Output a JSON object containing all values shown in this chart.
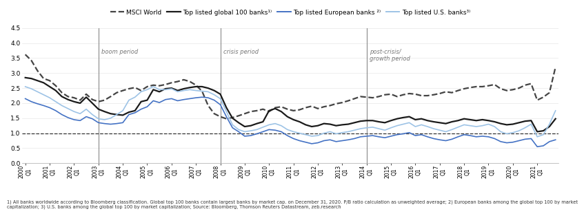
{
  "ylim": [
    0.0,
    4.5
  ],
  "yticks": [
    0.0,
    0.5,
    1.0,
    1.5,
    2.0,
    2.5,
    3.0,
    3.5,
    4.0,
    4.5
  ],
  "n_points": 88,
  "period_indices": [
    12,
    32,
    56
  ],
  "period_labels": [
    "boom period",
    "crisis period",
    "post-crisis/\ngrowth period"
  ],
  "footnote": "1) All banks worldwide according to Bloomberg classification. Global top 100 banks contain largest banks by market cap. on December 31, 2020. P/B ratio calculation as unweighted average; 2) European banks among the global top 100 by market\ncapitalization; 3) U.S. banks among the global top 100 by market capitalization; Source: Bloomberg, Thomson Reuters Datastream, zeb.research",
  "series": {
    "msci": {
      "label": "MSCI World",
      "color": "#444444",
      "linestyle": "--",
      "linewidth": 1.6,
      "values": [
        3.62,
        3.42,
        3.08,
        2.82,
        2.75,
        2.58,
        2.35,
        2.22,
        2.18,
        2.1,
        2.3,
        2.12,
        2.05,
        2.1,
        2.22,
        2.35,
        2.42,
        2.48,
        2.52,
        2.42,
        2.55,
        2.6,
        2.58,
        2.62,
        2.68,
        2.72,
        2.78,
        2.72,
        2.6,
        2.4,
        1.92,
        1.65,
        1.55,
        1.48,
        1.52,
        1.58,
        1.65,
        1.72,
        1.75,
        1.8,
        1.72,
        1.85,
        1.88,
        1.8,
        1.75,
        1.78,
        1.85,
        1.9,
        1.82,
        1.88,
        1.92,
        1.98,
        2.02,
        2.08,
        2.15,
        2.22,
        2.2,
        2.18,
        2.22,
        2.28,
        2.3,
        2.22,
        2.28,
        2.32,
        2.3,
        2.25,
        2.25,
        2.28,
        2.32,
        2.38,
        2.35,
        2.42,
        2.48,
        2.52,
        2.55,
        2.55,
        2.58,
        2.62,
        2.48,
        2.42,
        2.45,
        2.5,
        2.6,
        2.65,
        2.1,
        2.2,
        2.35,
        3.2
      ]
    },
    "global100": {
      "label": "Top listed global 100 banks",
      "label_super": "1)",
      "color": "#1a1a1a",
      "linestyle": "-",
      "linewidth": 1.6,
      "values": [
        2.85,
        2.82,
        2.75,
        2.68,
        2.55,
        2.42,
        2.22,
        2.12,
        2.05,
        2.0,
        2.2,
        2.0,
        1.8,
        1.72,
        1.65,
        1.62,
        1.6,
        1.7,
        1.75,
        2.05,
        2.1,
        2.45,
        2.38,
        2.48,
        2.5,
        2.42,
        2.48,
        2.52,
        2.55,
        2.55,
        2.5,
        2.42,
        2.3,
        1.85,
        1.5,
        1.35,
        1.22,
        1.25,
        1.32,
        1.38,
        1.75,
        1.82,
        1.72,
        1.55,
        1.45,
        1.38,
        1.28,
        1.22,
        1.25,
        1.32,
        1.3,
        1.25,
        1.28,
        1.3,
        1.35,
        1.4,
        1.42,
        1.42,
        1.38,
        1.35,
        1.42,
        1.48,
        1.52,
        1.55,
        1.45,
        1.48,
        1.42,
        1.38,
        1.35,
        1.32,
        1.38,
        1.42,
        1.48,
        1.45,
        1.42,
        1.45,
        1.42,
        1.38,
        1.32,
        1.28,
        1.3,
        1.35,
        1.4,
        1.42,
        1.05,
        1.08,
        1.22,
        1.48
      ]
    },
    "european": {
      "label": "Top listed European banks",
      "label_super": "2)",
      "color": "#4472c4",
      "linestyle": "-",
      "linewidth": 1.2,
      "values": [
        2.15,
        2.05,
        1.98,
        1.92,
        1.85,
        1.75,
        1.62,
        1.52,
        1.45,
        1.42,
        1.55,
        1.48,
        1.35,
        1.32,
        1.3,
        1.32,
        1.35,
        1.62,
        1.68,
        1.8,
        1.88,
        2.08,
        2.02,
        2.12,
        2.15,
        2.08,
        2.12,
        2.15,
        2.18,
        2.2,
        2.18,
        2.1,
        1.95,
        1.55,
        1.18,
        1.05,
        0.9,
        0.92,
        0.98,
        1.05,
        1.12,
        1.1,
        1.05,
        0.92,
        0.82,
        0.75,
        0.7,
        0.65,
        0.68,
        0.75,
        0.78,
        0.72,
        0.75,
        0.78,
        0.82,
        0.88,
        0.9,
        0.92,
        0.88,
        0.85,
        0.9,
        0.95,
        0.98,
        1.02,
        0.92,
        0.95,
        0.88,
        0.82,
        0.78,
        0.75,
        0.8,
        0.88,
        0.95,
        0.92,
        0.88,
        0.9,
        0.88,
        0.82,
        0.72,
        0.68,
        0.7,
        0.75,
        0.8,
        0.82,
        0.55,
        0.58,
        0.72,
        0.78
      ]
    },
    "us": {
      "label": "Top listed U.S. banks",
      "label_super": "3)",
      "color": "#9dc3e6",
      "linestyle": "-",
      "linewidth": 1.2,
      "values": [
        2.55,
        2.48,
        2.38,
        2.28,
        2.18,
        2.05,
        1.92,
        1.82,
        1.72,
        1.65,
        1.8,
        1.62,
        1.48,
        1.45,
        1.5,
        1.62,
        1.75,
        2.1,
        2.2,
        2.38,
        2.45,
        2.55,
        2.45,
        2.45,
        2.48,
        2.38,
        2.42,
        2.45,
        2.42,
        2.4,
        2.38,
        2.28,
        2.15,
        1.72,
        1.28,
        1.12,
        1.05,
        1.08,
        1.12,
        1.2,
        1.28,
        1.32,
        1.25,
        1.12,
        1.05,
        1.0,
        0.95,
        0.9,
        0.92,
        1.0,
        1.05,
        0.98,
        1.02,
        1.05,
        1.1,
        1.15,
        1.18,
        1.2,
        1.15,
        1.1,
        1.18,
        1.25,
        1.3,
        1.35,
        1.22,
        1.28,
        1.22,
        1.15,
        1.1,
        1.05,
        1.12,
        1.2,
        1.28,
        1.25,
        1.22,
        1.25,
        1.3,
        1.22,
        1.05,
        0.98,
        1.02,
        1.08,
        1.18,
        1.3,
        0.88,
        0.95,
        1.3,
        1.75
      ]
    }
  }
}
